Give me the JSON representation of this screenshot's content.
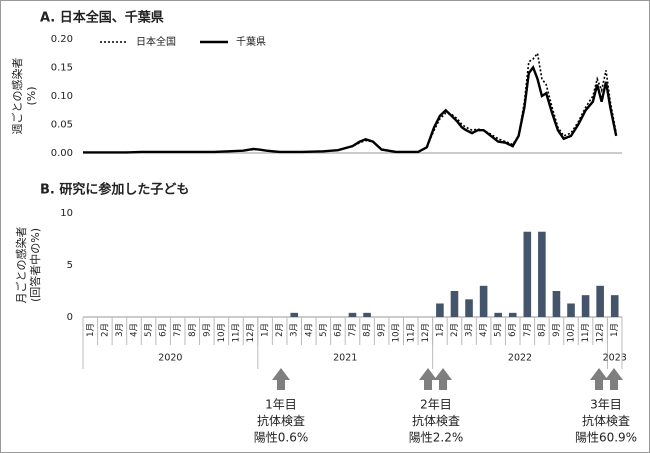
{
  "chart_data": [
    {
      "type": "line",
      "title": "A. 日本全国、千葉県",
      "ylabel": [
        "週ごとの感染者",
        "(%)"
      ],
      "x": [
        0,
        3,
        4,
        6,
        9,
        11,
        11.7,
        12.1,
        12.6,
        13.5,
        15,
        16.5,
        17.5,
        18.5,
        19.0,
        19.4,
        19.9,
        20.5,
        21.5,
        23.0,
        23.6,
        24.1,
        24.5,
        24.9,
        25.3,
        25.7,
        26.0,
        26.3,
        26.7,
        27.1,
        27.5,
        28.0,
        28.5,
        29.0,
        29.5,
        29.9,
        30.3,
        30.6,
        30.9,
        31.2,
        31.5,
        31.8,
        32.2,
        32.6,
        33.0,
        33.5,
        34.0,
        34.5,
        35.0,
        35.3,
        35.6,
        35.9,
        36.2,
        36.6
      ],
      "xlim": [
        0,
        37
      ],
      "ylim": [
        0,
        0.2
      ],
      "yticks": [
        {
          "value": 0,
          "label": "0.00"
        },
        0.05,
        {
          "value": 0.1,
          "label": "0.10"
        },
        0.15,
        {
          "value": 0.2,
          "label": "0.20"
        }
      ],
      "series": [
        {
          "name": "日本全国",
          "color": "#000000",
          "style": "dotted",
          "values": [
            0.001,
            0.001,
            0.002,
            0.002,
            0.002,
            0.004,
            0.006,
            0.006,
            0.004,
            0.002,
            0.002,
            0.003,
            0.005,
            0.012,
            0.018,
            0.022,
            0.02,
            0.007,
            0.002,
            0.002,
            0.01,
            0.04,
            0.06,
            0.07,
            0.068,
            0.06,
            0.05,
            0.045,
            0.04,
            0.042,
            0.04,
            0.033,
            0.025,
            0.02,
            0.015,
            0.03,
            0.09,
            0.16,
            0.165,
            0.175,
            0.13,
            0.12,
            0.08,
            0.045,
            0.03,
            0.035,
            0.055,
            0.08,
            0.1,
            0.13,
            0.11,
            0.145,
            0.09,
            0.035
          ]
        },
        {
          "name": "千葉県",
          "color": "#000000",
          "style": "solid",
          "values": [
            0.001,
            0.001,
            0.002,
            0.002,
            0.002,
            0.004,
            0.007,
            0.006,
            0.004,
            0.002,
            0.002,
            0.003,
            0.005,
            0.012,
            0.02,
            0.024,
            0.02,
            0.006,
            0.002,
            0.002,
            0.01,
            0.045,
            0.065,
            0.075,
            0.065,
            0.055,
            0.045,
            0.04,
            0.035,
            0.04,
            0.04,
            0.03,
            0.02,
            0.018,
            0.012,
            0.03,
            0.08,
            0.14,
            0.15,
            0.13,
            0.1,
            0.105,
            0.07,
            0.04,
            0.025,
            0.03,
            0.05,
            0.075,
            0.09,
            0.12,
            0.09,
            0.125,
            0.08,
            0.03
          ]
        }
      ]
    },
    {
      "type": "bar",
      "title": "B. 研究に参加した子ども",
      "ylabel": [
        "月ごとの感染者",
        "(回答者中の%)"
      ],
      "categories": [
        "1月",
        "2月",
        "3月",
        "4月",
        "5月",
        "6月",
        "7月",
        "8月",
        "9月",
        "10月",
        "11月",
        "12月",
        "1月",
        "2月",
        "3月",
        "4月",
        "5月",
        "6月",
        "7月",
        "8月",
        "9月",
        "10月",
        "11月",
        "12月",
        "1月",
        "2月",
        "3月",
        "4月",
        "5月",
        "6月",
        "7月",
        "8月",
        "9月",
        "10月",
        "11月",
        "12月",
        "1月"
      ],
      "groups": [
        {
          "label": "2020",
          "count": 12
        },
        {
          "label": "2021",
          "count": 12
        },
        {
          "label": "2022",
          "count": 12
        },
        {
          "label": "2023",
          "count": 1
        }
      ],
      "values": [
        0,
        0,
        0,
        0,
        0,
        0,
        0,
        0,
        0,
        0,
        0,
        0,
        0,
        0,
        0.4,
        0,
        0,
        0,
        0.4,
        0.4,
        0,
        0,
        0,
        0,
        1.3,
        2.5,
        1.7,
        3.0,
        0.4,
        0.4,
        8.2,
        8.2,
        2.5,
        1.3,
        2.1,
        3.0,
        2.1
      ],
      "color": "#44546a",
      "ylim": [
        0,
        10
      ],
      "yticks": [
        0,
        5,
        10
      ]
    }
  ],
  "annotations": [
    {
      "lines": [
        "1年目",
        "抗体検査",
        "陽性0.6%"
      ]
    },
    {
      "lines": [
        "2年目",
        "抗体検査",
        "陽性2.2%"
      ]
    },
    {
      "lines": [
        "3年目",
        "抗体検査",
        "陽性60.9%"
      ]
    }
  ]
}
